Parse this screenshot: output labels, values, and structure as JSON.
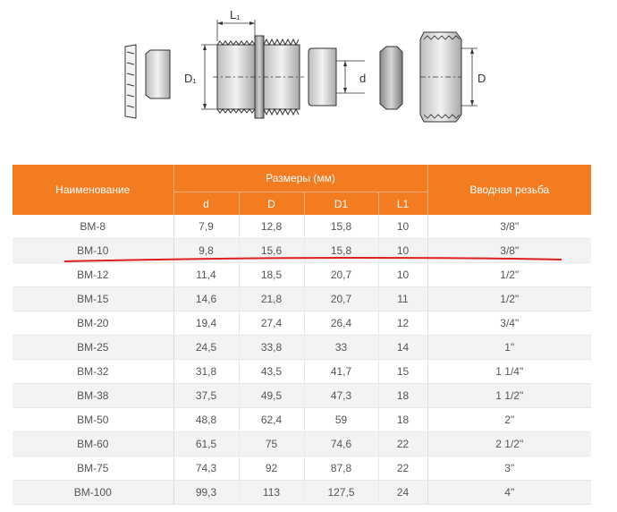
{
  "diagram": {
    "label_l1": "L₁",
    "label_d1": "D₁",
    "label_d": "d",
    "label_D": "D"
  },
  "table": {
    "header_name": "Наименование",
    "header_group": "Размеры (мм)",
    "header_thread": "Вводная резьба",
    "sub_headers": [
      "d",
      "D",
      "D1",
      "L1"
    ],
    "rows": [
      {
        "name": "ВМ-8",
        "d": "7,9",
        "D": "12,8",
        "D1": "15,8",
        "L1": "10",
        "thread": "3/8\""
      },
      {
        "name": "ВМ-10",
        "d": "9,8",
        "D": "15,6",
        "D1": "15,8",
        "L1": "10",
        "thread": "3/8\""
      },
      {
        "name": "ВМ-12",
        "d": "11,4",
        "D": "18,5",
        "D1": "20,7",
        "L1": "10",
        "thread": "1/2\""
      },
      {
        "name": "ВМ-15",
        "d": "14,6",
        "D": "21,8",
        "D1": "20,7",
        "L1": "11",
        "thread": "1/2\""
      },
      {
        "name": "ВМ-20",
        "d": "19,4",
        "D": "27,4",
        "D1": "26,4",
        "L1": "12",
        "thread": "3/4\""
      },
      {
        "name": "ВМ-25",
        "d": "24,5",
        "D": "33,8",
        "D1": "33",
        "L1": "14",
        "thread": "1\""
      },
      {
        "name": "ВМ-32",
        "d": "31,8",
        "D": "43,5",
        "D1": "41,7",
        "L1": "15",
        "thread": "1 1/4\""
      },
      {
        "name": "ВМ-38",
        "d": "37,5",
        "D": "49,5",
        "D1": "47,3",
        "L1": "18",
        "thread": "1 1/2\""
      },
      {
        "name": "ВМ-50",
        "d": "48,8",
        "D": "62,4",
        "D1": "59",
        "L1": "18",
        "thread": "2\""
      },
      {
        "name": "ВМ-60",
        "d": "61,5",
        "D": "75",
        "D1": "74,6",
        "L1": "22",
        "thread": "2 1/2\""
      },
      {
        "name": "ВМ-75",
        "d": "74,3",
        "D": "92",
        "D1": "87,8",
        "L1": "22",
        "thread": "3\""
      },
      {
        "name": "ВМ-100",
        "d": "99,3",
        "D": "113",
        "D1": "127,5",
        "L1": "24",
        "thread": "4\""
      }
    ]
  },
  "colors": {
    "header_orange": "#f47c20",
    "highlight_red": "#e02020"
  }
}
